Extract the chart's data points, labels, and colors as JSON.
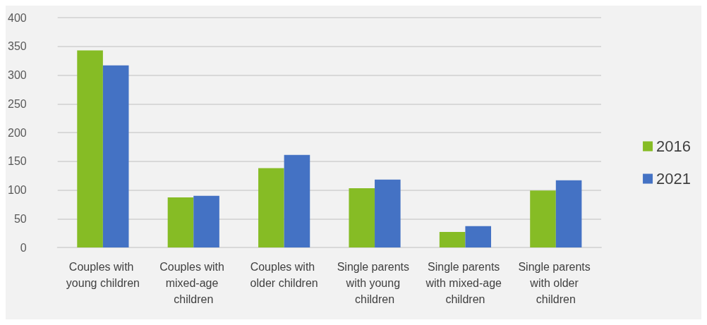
{
  "chart_data": {
    "type": "bar",
    "categories": [
      "Couples with young children",
      "Couples with mixed-age children",
      "Couples with older children",
      "Single parents with young children",
      "Single parents with mixed-age children",
      "Single parents with older children"
    ],
    "series": [
      {
        "name": "2016",
        "color": "#86bc25",
        "values": [
          343,
          87,
          138,
          103,
          27,
          99
        ]
      },
      {
        "name": "2021",
        "color": "#4472c4",
        "values": [
          317,
          90,
          161,
          118,
          37,
          117
        ]
      }
    ],
    "ylim": [
      0,
      400
    ],
    "yticks": [
      0,
      50,
      100,
      150,
      200,
      250,
      300,
      350,
      400
    ],
    "grid": "y",
    "legend": "right"
  }
}
